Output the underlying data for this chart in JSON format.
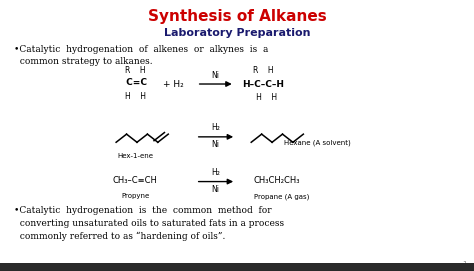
{
  "title": "Synthesis of Alkanes",
  "subtitle": "Laboratory Preparation",
  "title_color": "#cc0000",
  "subtitle_color": "#1a1a6e",
  "text_color": "#000000",
  "bg_color": "#e8e8e8",
  "bullet1_line1": "•Catalytic  hydrogenation  of  alkenes  or  alkynes  is  a",
  "bullet1_line2": "  common strategy to alkanes.",
  "bullet2_line1": "•Catalytic  hydrogenation  is  the  common  method  for",
  "bullet2_line2": "  converting unsaturated oils to saturated fats in a process",
  "bullet2_line3": "  commonly referred to as “hardening of oils”.",
  "page_num": "1"
}
